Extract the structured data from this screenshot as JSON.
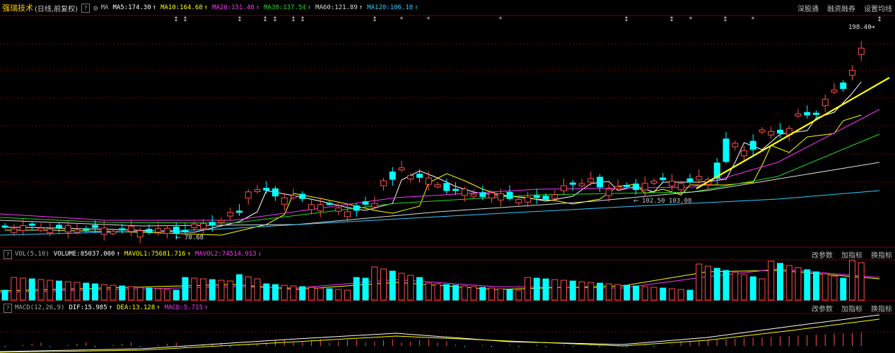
{
  "header": {
    "stock_name": "强瑞技术",
    "subtitle": "(日线,前复权)",
    "help": "?",
    "indicator_label": "MA",
    "ma": [
      {
        "label": "MA5:174.30",
        "color": "#ffffff"
      },
      {
        "label": "MA10:164.68",
        "color": "#ffff00"
      },
      {
        "label": "MA20:151.48",
        "color": "#ff33ff"
      },
      {
        "label": "MA30:137.54",
        "color": "#22dd22"
      },
      {
        "label": "MA60:121.89",
        "color": "#dddddd"
      },
      {
        "label": "MA120:106.10",
        "color": "#33ccff"
      }
    ],
    "up_arrow": "↑",
    "buttons": [
      "深股通",
      "融资融券",
      "设置均线"
    ]
  },
  "price_panel": {
    "high_label": "198.40",
    "low_label": "70.68",
    "mid_label": "102.50 103.08"
  },
  "volume_panel": {
    "help": "?",
    "name": "VOL(5,10)",
    "volume": "VOLUME:85037.000",
    "mavol1": "MAVOL1:75681.716",
    "mavol2": "MAVOL2:74514.913",
    "up_arrow": "↑",
    "down_arrow": "↓",
    "buttons": [
      "改参数",
      "加指标",
      "换指标"
    ]
  },
  "macd_panel": {
    "help": "?",
    "name": "MACD(12,26,9)",
    "dif": "DIF:15.985",
    "dea": "DEA:13.128",
    "macd": "MACD:5.715",
    "up_arrow": "↑",
    "buttons": [
      "改参数",
      "加指标",
      "换指标"
    ]
  },
  "colors": {
    "up": "#ff4d4d",
    "down": "#00ffff",
    "grid": "#7a0000",
    "trend": "#ffff00"
  }
}
